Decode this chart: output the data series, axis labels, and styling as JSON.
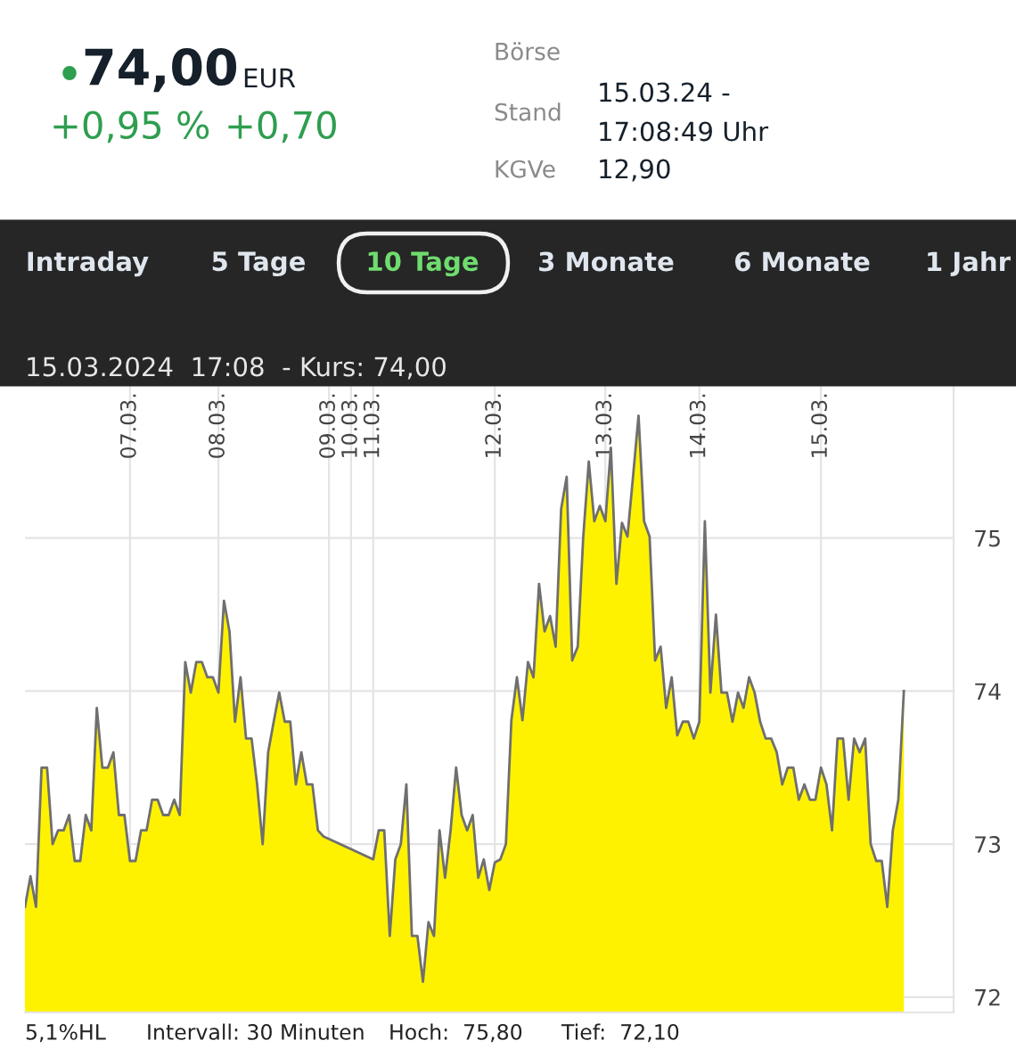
{
  "chart_data": {
    "type": "area",
    "title": "15.03.2024  17:08  - Kurs: 74,00",
    "annotations": [
      "74,00",
      "EUR",
      "+0,95 %",
      "+0,70",
      "Börse",
      "Stand",
      "15.03.24 -",
      "17:08:49 Uhr",
      "KGVe",
      "12,90",
      "Intraday",
      "5 Tage",
      "10 Tage",
      "3 Monate",
      "6 Monate",
      "1 Jahr",
      "5,1%HL",
      "Intervall: 30 Minuten",
      "Hoch:  75,80",
      "Tief:  72,10"
    ],
    "categories": [
      null,
      null,
      null,
      null,
      null,
      null,
      null,
      null,
      null,
      null,
      null,
      null,
      null,
      null,
      null,
      null,
      null,
      null,
      null,
      "07.03.",
      null,
      null,
      null,
      null,
      null,
      null,
      null,
      null,
      null,
      null,
      null,
      null,
      null,
      null,
      null,
      "08.03.",
      null,
      null,
      null,
      null,
      null,
      null,
      null,
      null,
      null,
      null,
      null,
      null,
      null,
      null,
      null,
      null,
      null,
      null,
      null,
      "09.03.",
      null,
      null,
      null,
      "10.03.",
      null,
      null,
      null,
      "11.03.",
      null,
      null,
      null,
      null,
      null,
      null,
      null,
      null,
      null,
      null,
      null,
      null,
      null,
      null,
      null,
      null,
      null,
      null,
      null,
      null,
      null,
      "12.03.",
      null,
      null,
      null,
      null,
      null,
      null,
      null,
      null,
      null,
      null,
      null,
      null,
      null,
      null,
      null,
      null,
      null,
      null,
      null,
      "13.03.",
      null,
      null,
      null,
      null,
      null,
      null,
      null,
      null,
      null,
      null,
      null,
      null,
      null,
      null,
      null,
      null,
      "14.03.",
      null,
      null,
      null,
      null,
      null,
      null,
      null,
      null,
      null,
      null,
      null,
      null,
      null,
      null,
      null,
      null,
      null,
      null,
      null,
      null,
      null,
      "15.03.",
      null,
      null,
      null,
      null,
      null,
      null,
      null,
      null,
      null,
      null,
      null,
      null,
      null,
      null,
      null,
      null,
      null,
      null,
      null,
      null,
      null,
      null,
      null,
      null
    ],
    "series": [
      {
        "color": "#fff200",
        "values": [
          72.59,
          72.79,
          72.59,
          73.5,
          73.5,
          73.0,
          73.09,
          73.09,
          73.19,
          72.89,
          72.89,
          73.19,
          73.09,
          73.89,
          73.5,
          73.5,
          73.6,
          73.19,
          73.19,
          72.89,
          72.89,
          73.09,
          73.09,
          73.29,
          73.29,
          73.19,
          73.19,
          73.29,
          73.19,
          74.19,
          73.99,
          74.19,
          74.19,
          74.09,
          74.09,
          73.99,
          74.59,
          74.39,
          73.8,
          74.09,
          73.69,
          73.69,
          73.39,
          73.0,
          73.6,
          73.8,
          73.99,
          73.8,
          73.8,
          73.39,
          73.6,
          73.39,
          73.39,
          73.09,
          73.05,
          null,
          null,
          null,
          null,
          null,
          null,
          null,
          null,
          72.9,
          73.09,
          73.09,
          72.4,
          72.9,
          73.0,
          73.39,
          72.4,
          72.4,
          72.1,
          72.49,
          72.4,
          73.09,
          72.78,
          73.09,
          73.5,
          73.19,
          73.09,
          73.19,
          72.78,
          72.9,
          72.7,
          72.88,
          72.9,
          73.0,
          73.81,
          74.09,
          73.81,
          74.19,
          74.09,
          74.7,
          74.39,
          74.49,
          74.29,
          75.19,
          75.4,
          74.2,
          74.29,
          75.01,
          75.5,
          75.11,
          75.21,
          75.11,
          75.59,
          74.7,
          75.1,
          75.01,
          75.4,
          75.8,
          75.11,
          75.01,
          74.2,
          74.29,
          73.89,
          74.09,
          73.71,
          73.8,
          73.8,
          73.69,
          73.8,
          75.11,
          73.99,
          74.5,
          73.99,
          73.99,
          73.8,
          73.99,
          73.89,
          74.09,
          73.99,
          73.8,
          73.69,
          73.69,
          73.6,
          73.39,
          73.5,
          73.5,
          73.29,
          73.39,
          73.29,
          73.29,
          73.5,
          73.39,
          73.09,
          73.69,
          73.69,
          73.29,
          73.69,
          73.6,
          73.69,
          73.0,
          72.89,
          72.89,
          72.59,
          73.09,
          73.29,
          74.0,
          null,
          null,
          null,
          null,
          null,
          null,
          null,
          null,
          null
        ]
      }
    ],
    "ylim": [
      71.9,
      76.0
    ],
    "yticks": [
      72,
      73,
      74,
      75
    ],
    "grid": true
  }
}
